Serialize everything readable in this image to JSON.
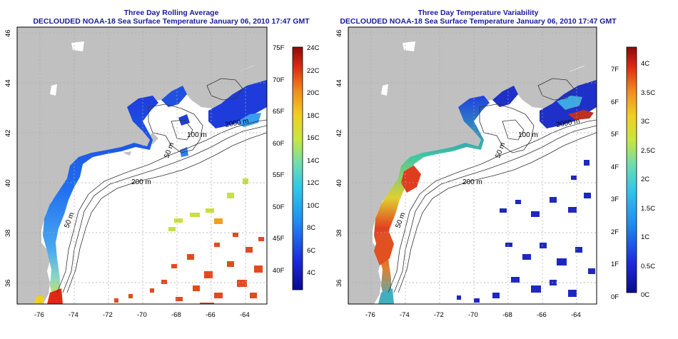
{
  "left_panel": {
    "title_line1": "Three Day Rolling Average",
    "title_line2": "DECLOUDED NOAA-18 Sea Surface Temperature January 06, 2010 17:47 GMT",
    "colorbar": {
      "fahrenheit_ticks": [
        "75F",
        "70F",
        "65F",
        "60F",
        "55F",
        "50F",
        "45F",
        "40F"
      ],
      "celsius_ticks": [
        "24C",
        "22C",
        "20C",
        "18C",
        "16C",
        "14C",
        "12C",
        "10C",
        "8C",
        "6C",
        "4C"
      ]
    }
  },
  "right_panel": {
    "title_line1": "Three Day Temperature Variability",
    "title_line2": "DECLOUDED NOAA-18 Sea Surface Temperature January 06, 2010 17:47 GMT",
    "colorbar": {
      "fahrenheit_ticks": [
        "7F",
        "6F",
        "5F",
        "4F",
        "3F",
        "2F",
        "1F",
        "0F"
      ],
      "celsius_ticks": [
        "4C",
        "3.5C",
        "3C",
        "2.5C",
        "2C",
        "1.5C",
        "1C",
        "0.5C",
        "0C"
      ]
    }
  },
  "map_axes": {
    "longitude_ticks": [
      "-76",
      "-74",
      "-72",
      "-70",
      "-68",
      "-66",
      "-64"
    ],
    "latitude_ticks": [
      "46",
      "44",
      "42",
      "40",
      "38",
      "36"
    ]
  },
  "contour_labels": [
    "2000 m",
    "100 m",
    "50 m",
    "200 m",
    "50 m"
  ],
  "colors": {
    "title": "#1a1a9a",
    "land": "#c0c0c0",
    "ocean": "#ffffff",
    "contour": "#333333",
    "grid": "#aaaaaa"
  }
}
